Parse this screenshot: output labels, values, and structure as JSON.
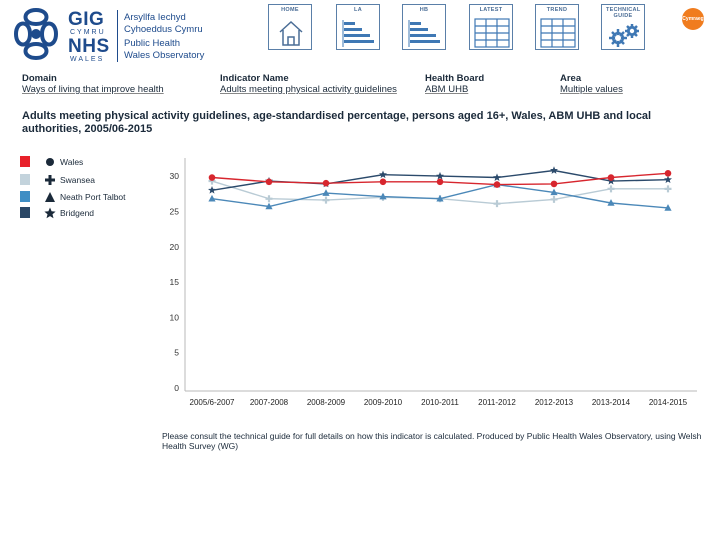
{
  "header": {
    "logo": {
      "gig": "GIG",
      "cymru": "CYMRU",
      "nhs": "NHS",
      "wales": "WALES",
      "lines": [
        "Arsyllfa Iechyd",
        "Cyhoeddus Cymru",
        "Public Health",
        "Wales Observatory"
      ]
    },
    "nav": [
      {
        "label": "HOME",
        "icon": "house-icon"
      },
      {
        "label": "LA",
        "icon": "bar-chart-icon"
      },
      {
        "label": "HB",
        "icon": "bar-chart-icon"
      },
      {
        "label": "LATEST",
        "icon": "table-icon"
      },
      {
        "label": "TREND",
        "icon": "table-icon"
      },
      {
        "label": "TECHNICAL GUIDE",
        "icon": "gears-icon"
      }
    ],
    "language_button": "Cymraeg"
  },
  "meta": [
    {
      "label": "Domain",
      "value": "Ways of living that improve health"
    },
    {
      "label": "Indicator Name",
      "value": "Adults meeting physical activity guidelines"
    },
    {
      "label": "Health Board",
      "value": "ABM UHB"
    },
    {
      "label": "Area",
      "value": "Multiple values"
    }
  ],
  "footnote": "Please consult the technical guide for full details on how this indicator is calculated.  Produced by Public Health Wales Observatory, using Welsh Health Survey (WG)",
  "chart_data": {
    "type": "line",
    "title": "Adults meeting physical activity guidelines, age-standardised percentage, persons aged 16+, Wales, ABM UHB and local authorities, 2005/06-2015",
    "categories": [
      "2005/6-2007",
      "2007-2008",
      "2008-2009",
      "2009-2010",
      "2010-2011",
      "2011-2012",
      "2012-2013",
      "2013-2014",
      "2014-2015"
    ],
    "ylim": [
      0,
      32
    ],
    "yticks": [
      0,
      5,
      10,
      15,
      20,
      25,
      30
    ],
    "grid": false,
    "legend_position": "left",
    "series": [
      {
        "name": "Wales",
        "marker": "circle",
        "color": "#d7262e",
        "swatch": "#e8212a",
        "values": [
          29.8,
          29.2,
          29.0,
          29.2,
          29.2,
          28.8,
          28.9,
          29.8,
          30.4
        ]
      },
      {
        "name": "Swansea",
        "marker": "plus",
        "color": "#b9cbd5",
        "swatch": "#c3d3dc",
        "values": [
          29.3,
          26.8,
          26.6,
          27.0,
          26.8,
          26.1,
          26.7,
          28.2,
          28.2
        ]
      },
      {
        "name": "Neath Port Talbot",
        "marker": "triangle",
        "color": "#4b88b8",
        "swatch": "#3f8ec4",
        "values": [
          26.8,
          25.7,
          27.6,
          27.1,
          26.8,
          28.8,
          27.7,
          26.2,
          25.5
        ]
      },
      {
        "name": "Bridgend",
        "marker": "star",
        "color": "#2b4a6b",
        "swatch": "#2a4766",
        "values": [
          28.0,
          29.3,
          28.9,
          30.2,
          30.0,
          29.8,
          30.8,
          29.3,
          29.5
        ]
      }
    ]
  }
}
